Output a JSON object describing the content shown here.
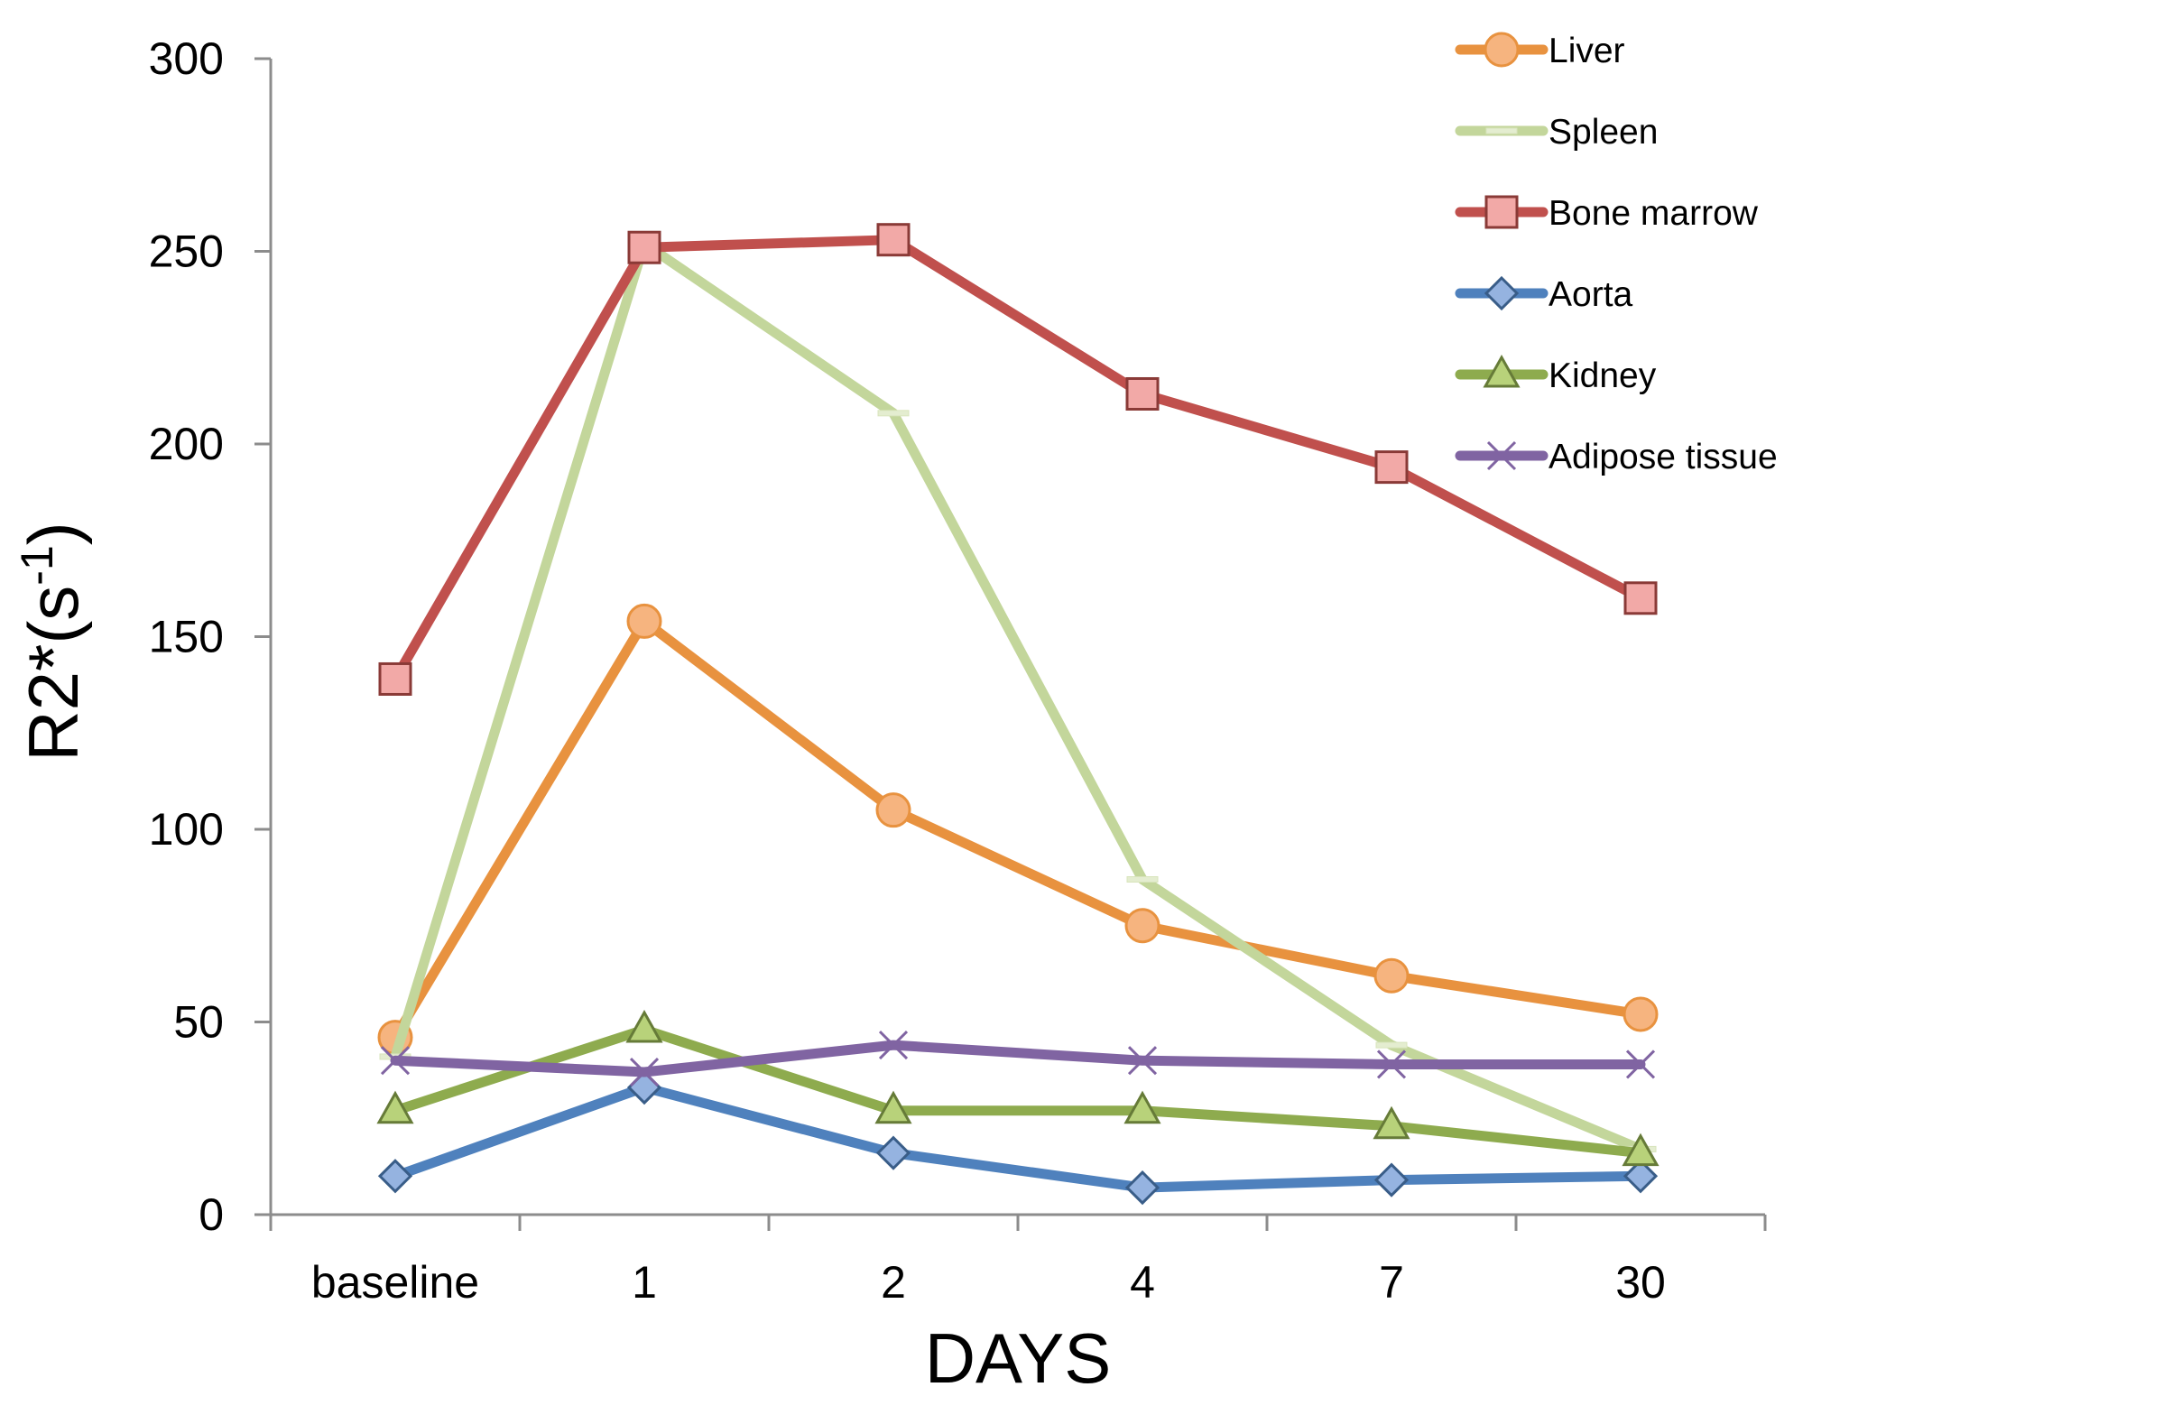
{
  "chart_data": {
    "type": "line",
    "title": "",
    "xlabel": "DAYS",
    "ylabel": "R2*(s",
    "ylabel_superscript": "-1",
    "ylabel_suffix": ")",
    "categories": [
      "baseline",
      "1",
      "2",
      "4",
      "7",
      "30"
    ],
    "ylim": [
      0,
      300
    ],
    "yticks": [
      0,
      50,
      100,
      150,
      200,
      250,
      300
    ],
    "grid": false,
    "legend_position": "top-right",
    "series": [
      {
        "name": "Liver",
        "color": "#E8923F",
        "marker": "circle",
        "marker_fill": "#F6B47F",
        "values": [
          46,
          154,
          105,
          75,
          62,
          52
        ]
      },
      {
        "name": "Spleen",
        "color": "#C3D69B",
        "marker": "dash",
        "marker_fill": "#D8E4BC",
        "values": [
          41,
          252,
          208,
          87,
          44,
          17
        ]
      },
      {
        "name": "Bone marrow",
        "color": "#C0504D",
        "marker": "square",
        "marker_fill": "#F2A9A7",
        "values": [
          139,
          251,
          253,
          213,
          194,
          160
        ]
      },
      {
        "name": "Aorta",
        "color": "#4F81BD",
        "marker": "diamond",
        "marker_fill": "#95B3E0",
        "values": [
          10,
          33,
          16,
          7,
          9,
          10
        ]
      },
      {
        "name": "Kidney",
        "color": "#8EAB4E",
        "marker": "triangle",
        "marker_fill": "#B8D27A",
        "values": [
          27,
          48,
          27,
          27,
          23,
          16
        ]
      },
      {
        "name": "Adipose tissue",
        "color": "#8064A2",
        "marker": "x",
        "marker_fill": "#8064A2",
        "values": [
          40,
          37,
          44,
          40,
          39,
          39
        ]
      }
    ]
  }
}
